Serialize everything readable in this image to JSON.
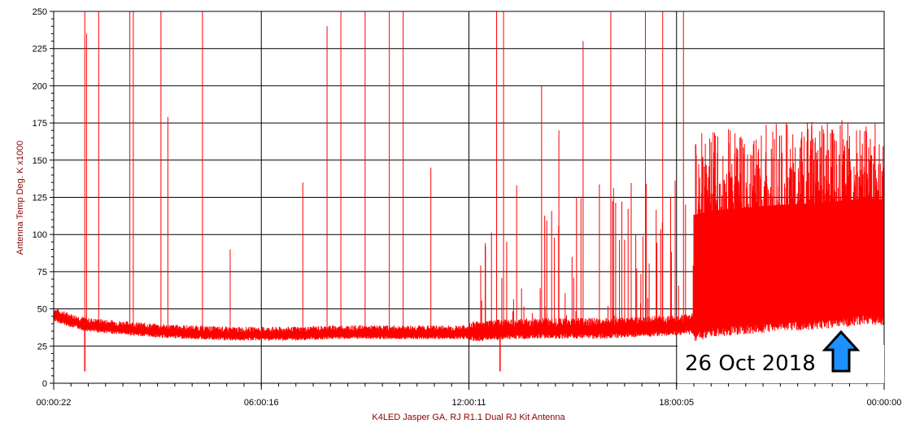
{
  "chart_data": {
    "type": "line",
    "xlabel": "K4LED Jasper GA, RJ R1.1 Dual RJ Kit Antenna",
    "ylabel": "Antenna Temp Deg. K x1000",
    "x_tick_labels": [
      "00:00:22",
      "06:00:16",
      "12:00:11",
      "18:00:05",
      "00:00:00"
    ],
    "x_range_hours": [
      0,
      24
    ],
    "ylim": [
      0,
      250
    ],
    "y_ticks": [
      0,
      25,
      50,
      75,
      100,
      125,
      150,
      175,
      200,
      225,
      250
    ],
    "grid": true,
    "series": [
      {
        "color": "#FF0000",
        "baseline_hours": [
          0,
          0.5,
          1,
          2,
          3,
          4,
          5,
          6,
          7,
          8,
          9,
          10,
          11,
          12,
          13,
          14,
          15,
          16,
          17,
          18,
          18.5,
          19,
          20,
          21,
          22,
          23,
          23.5,
          24
        ],
        "baseline_values": [
          45,
          41,
          38,
          36,
          34,
          33,
          32,
          32,
          32,
          33,
          33,
          33,
          33,
          33,
          34,
          35,
          35,
          35,
          36,
          37,
          38,
          41,
          43,
          45,
          46,
          48,
          50,
          48
        ],
        "spike_hours": [
          0.9,
          0.95,
          1.3,
          2.2,
          2.3,
          3.1,
          3.3,
          4.3,
          5.1,
          7.2,
          7.9,
          8.3,
          9.0,
          9.7,
          10.1,
          10.9,
          12.8,
          13.0,
          14.1,
          14.6,
          15.3,
          16.1,
          17.1,
          17.6,
          18.2
        ],
        "spike_values": [
          250,
          235,
          250,
          250,
          250,
          250,
          179,
          250,
          90,
          135,
          240,
          250,
          250,
          250,
          250,
          145,
          250,
          250,
          200,
          170,
          230,
          250,
          250,
          250,
          250
        ],
        "dips": [
          {
            "x_hours": 0.9,
            "y": 8
          },
          {
            "x_hours": 12.9,
            "y": 8
          }
        ]
      }
    ],
    "annotation": "26 Oct 2018",
    "annotation_marker": "up-arrow"
  },
  "colors": {
    "series": "#FF0000",
    "arrow_fill": "#1E90FF",
    "axis_text": "#8B0000"
  }
}
